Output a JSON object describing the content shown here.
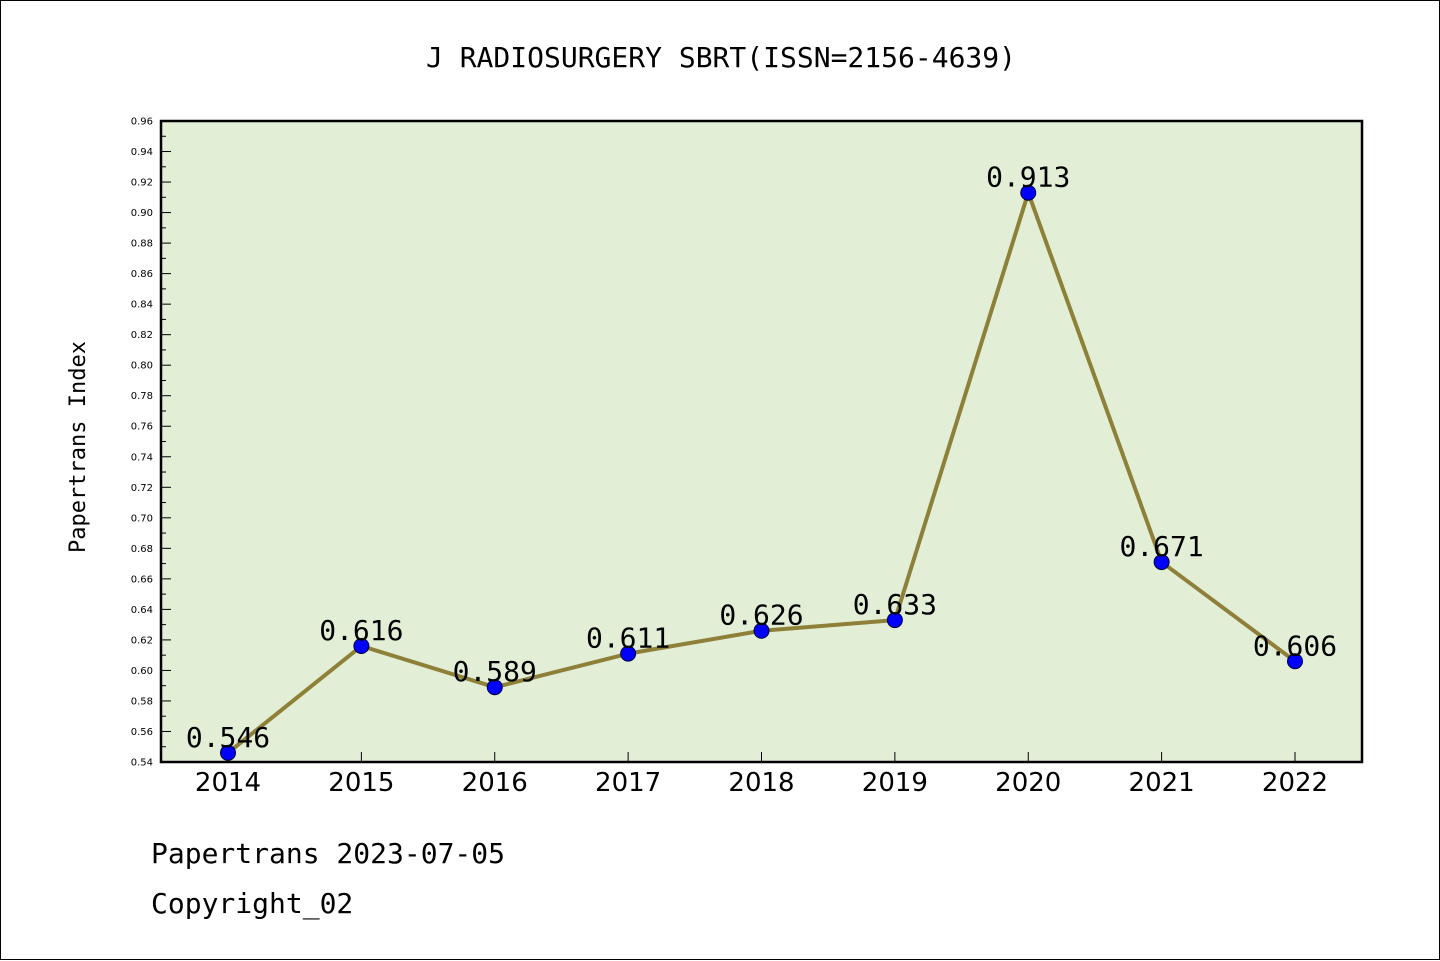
{
  "footer": {
    "line1": "Papertrans 2023-07-05",
    "line2": "Copyright_02"
  },
  "chart_data": {
    "type": "line",
    "title": "J RADIOSURGERY SBRT(ISSN=2156-4639)",
    "xlabel": "",
    "ylabel": "Papertrans Index",
    "categories": [
      "2014",
      "2015",
      "2016",
      "2017",
      "2018",
      "2019",
      "2020",
      "2021",
      "2022"
    ],
    "series": [
      {
        "values": [
          0.546,
          0.616,
          0.589,
          0.611,
          0.626,
          0.633,
          0.913,
          0.671,
          0.606
        ],
        "labels": [
          "0.546",
          "0.616",
          "0.589",
          "0.611",
          "0.626",
          "0.633",
          "0.913",
          "0.671",
          "0.606"
        ]
      }
    ],
    "ylim": [
      0.54,
      0.96
    ],
    "yticks": [
      "0.54",
      "0.56",
      "0.58",
      "0.60",
      "0.62",
      "0.64",
      "0.66",
      "0.68",
      "0.70",
      "0.72",
      "0.74",
      "0.76",
      "0.78",
      "0.80",
      "0.82",
      "0.84",
      "0.86",
      "0.88",
      "0.90",
      "0.92",
      "0.94",
      "0.96"
    ],
    "grid": false,
    "legend": "none",
    "colors": {
      "plot_background": "#e2efd6",
      "line": "#8e8038",
      "marker": "#0000ff",
      "axis": "#000000"
    }
  }
}
